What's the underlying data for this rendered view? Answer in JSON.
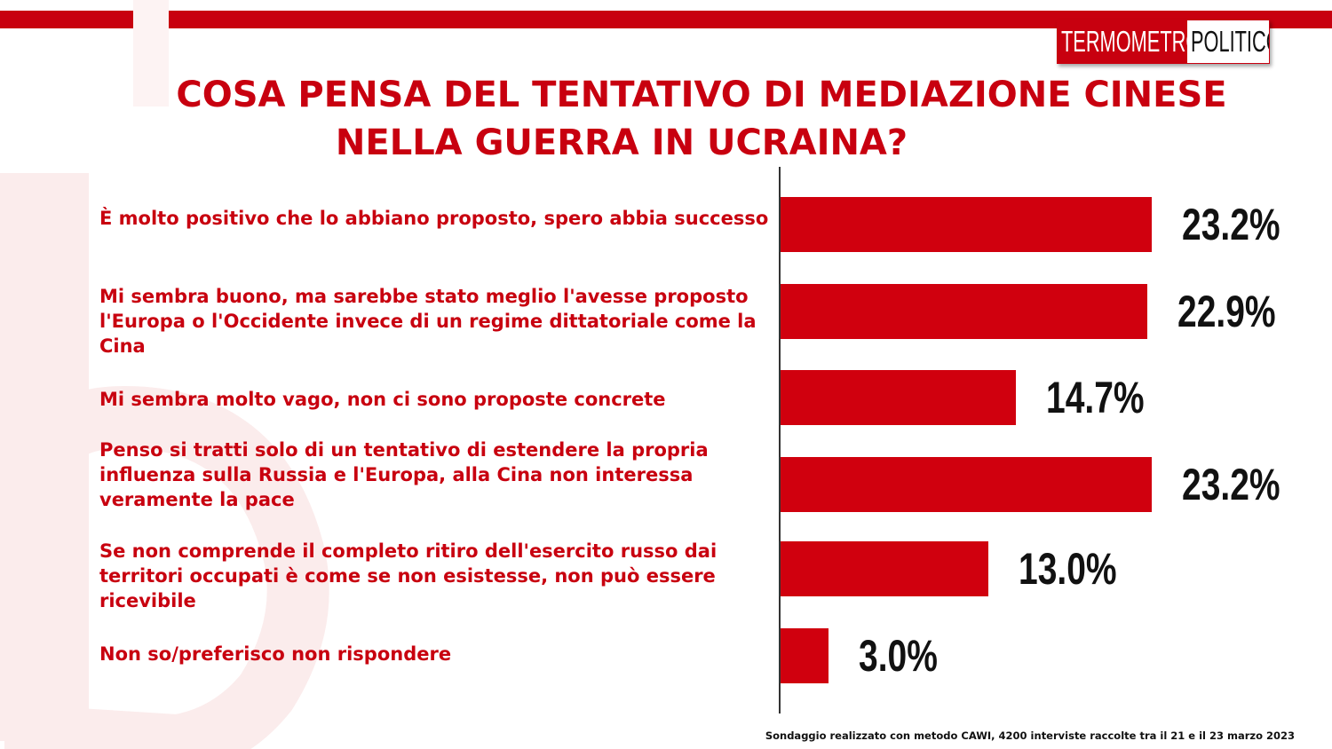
{
  "header": {
    "logo_part1": "TERMOMETRO",
    "logo_part2": "POLITICO",
    "accent_color": "#c8000f"
  },
  "chart_data": {
    "type": "bar",
    "orientation": "horizontal",
    "title": "COSA PENSA DEL TENTATIVO DI MEDIAZIONE CINESE NELLA GUERRA IN UCRAINA?",
    "title_lines": [
      "COSA PENSA DEL TENTATIVO DI MEDIAZIONE CINESE",
      "NELLA GUERRA IN UCRAINA?"
    ],
    "categories": [
      "È molto positivo che lo abbiano proposto, spero abbia successo",
      "Mi sembra buono, ma sarebbe stato meglio l'avesse proposto l'Europa o l'Occidente invece di un regime dittatoriale come la Cina",
      "Mi sembra molto vago, non ci sono proposte concrete",
      "Penso si tratti solo di un tentativo di estendere la propria influenza sulla Russia e l'Europa, alla Cina non interessa veramente la pace",
      "Se non comprende il completo ritiro dell'esercito russo dai territori occupati è come se non esistesse, non può essere ricevibile",
      "Non so/preferisco non rispondere"
    ],
    "values": [
      23.2,
      22.9,
      14.7,
      23.2,
      13.0,
      3.0
    ],
    "value_labels": [
      "23.2%",
      "22.9%",
      "14.7%",
      "23.2%",
      "13.0%",
      "3.0%"
    ],
    "bar_color": "#d0000e",
    "xlabel": "",
    "ylabel": "",
    "grid": false,
    "legend": "none"
  },
  "footnote": "Sondaggio realizzato con metodo CAWI, 4200 interviste raccolte tra il 21 e il 23 marzo 2023"
}
